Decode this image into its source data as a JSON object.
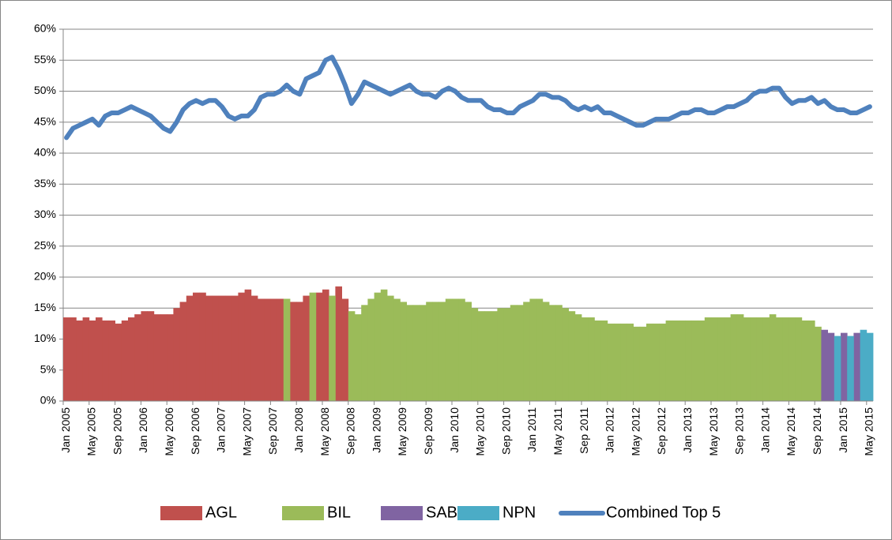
{
  "chart_data": {
    "type": "combo",
    "ylim": [
      0,
      60
    ],
    "yticks": [
      {
        "value": 0,
        "label": "0%"
      },
      {
        "value": 5,
        "label": "5%"
      },
      {
        "value": 10,
        "label": "10%"
      },
      {
        "value": 15,
        "label": "15%"
      },
      {
        "value": 20,
        "label": "20%"
      },
      {
        "value": 25,
        "label": "25%"
      },
      {
        "value": 30,
        "label": "30%"
      },
      {
        "value": 35,
        "label": "35%"
      },
      {
        "value": 40,
        "label": "40%"
      },
      {
        "value": 45,
        "label": "45%"
      },
      {
        "value": 50,
        "label": "50%"
      },
      {
        "value": 55,
        "label": "55%"
      },
      {
        "value": 60,
        "label": "60%"
      }
    ],
    "grid": true,
    "legend": "bottom",
    "categories": [
      "Jan 2005",
      null,
      null,
      null,
      "May 2005",
      null,
      null,
      null,
      "Sep 2005",
      null,
      null,
      null,
      "Jan 2006",
      null,
      null,
      null,
      "May 2006",
      null,
      null,
      null,
      "Sep 2006",
      null,
      null,
      null,
      "Jan 2007",
      null,
      null,
      null,
      "May 2007",
      null,
      null,
      null,
      "Sep 2007",
      null,
      null,
      null,
      "Jan 2008",
      null,
      null,
      null,
      "May 2008",
      null,
      null,
      null,
      "Sep 2008",
      null,
      null,
      null,
      "Jan 2009",
      null,
      null,
      null,
      "May 2009",
      null,
      null,
      null,
      "Sep 2009",
      null,
      null,
      null,
      "Jan 2010",
      null,
      null,
      null,
      "May 2010",
      null,
      null,
      null,
      "Sep 2010",
      null,
      null,
      null,
      "Jan 2011",
      null,
      null,
      null,
      "May 2011",
      null,
      null,
      null,
      "Sep 2011",
      null,
      null,
      null,
      "Jan 2012",
      null,
      null,
      null,
      "May 2012",
      null,
      null,
      null,
      "Sep 2012",
      null,
      null,
      null,
      "Jan 2013",
      null,
      null,
      null,
      "May 2013",
      null,
      null,
      null,
      "Sep 2013",
      null,
      null,
      null,
      "Jan 2014",
      null,
      null,
      null,
      "May 2014",
      null,
      null,
      null,
      "Sep 2014",
      null,
      null,
      null,
      "Jan 2015",
      null,
      null,
      null,
      "May 2015"
    ],
    "series": [
      {
        "name": "AGL",
        "type": "area",
        "color": "#c0504d",
        "values": [
          13.5,
          13.5,
          13,
          13.5,
          13,
          13.5,
          13,
          13,
          12.5,
          13,
          13.5,
          14,
          14.5,
          14.5,
          14,
          14,
          14,
          15,
          16,
          17,
          17.5,
          17.5,
          17,
          17,
          17,
          17,
          17,
          17.5,
          18,
          17,
          16.5,
          16.5,
          16.5,
          16.5,
          null,
          16,
          16,
          17,
          null,
          17.5,
          18,
          null,
          18.5,
          16.5,
          null,
          null,
          null,
          null,
          null,
          null,
          null,
          null,
          null,
          null,
          null,
          null,
          null,
          null,
          null,
          null,
          null,
          null,
          null,
          null,
          null,
          null,
          null,
          null,
          null,
          null,
          null,
          null,
          null,
          null,
          null,
          null,
          null,
          null,
          null,
          null,
          null,
          null,
          null,
          null,
          null,
          null,
          null,
          null,
          null,
          null,
          null,
          null,
          null,
          null,
          null,
          null,
          null,
          null,
          null,
          null,
          null,
          null,
          null,
          null,
          null,
          null,
          null,
          null,
          null,
          null,
          null,
          null,
          null,
          null,
          null,
          null,
          null,
          null,
          null,
          null,
          null,
          null,
          null,
          null,
          null
        ]
      },
      {
        "name": "BIL",
        "type": "area",
        "color": "#9bbb59",
        "values": [
          null,
          null,
          null,
          null,
          null,
          null,
          null,
          null,
          null,
          null,
          null,
          null,
          null,
          null,
          null,
          null,
          null,
          null,
          null,
          null,
          null,
          null,
          null,
          null,
          null,
          null,
          null,
          null,
          null,
          null,
          null,
          null,
          null,
          null,
          16.5,
          null,
          null,
          null,
          17.5,
          null,
          null,
          17,
          null,
          null,
          14.5,
          14,
          15.5,
          16.5,
          17.5,
          18,
          17,
          16.5,
          16,
          15.5,
          15.5,
          15.5,
          16,
          16,
          16,
          16.5,
          16.5,
          16.5,
          16,
          15,
          14.5,
          14.5,
          14.5,
          15,
          15,
          15.5,
          15.5,
          16,
          16.5,
          16.5,
          16,
          15.5,
          15.5,
          15,
          14.5,
          14,
          13.5,
          13.5,
          13,
          13,
          12.5,
          12.5,
          12.5,
          12.5,
          12,
          12,
          12.5,
          12.5,
          12.5,
          13,
          13,
          13,
          13,
          13,
          13,
          13.5,
          13.5,
          13.5,
          13.5,
          14,
          14,
          13.5,
          13.5,
          13.5,
          13.5,
          14,
          13.5,
          13.5,
          13.5,
          13.5,
          13,
          13,
          12,
          null,
          null,
          null,
          null,
          null,
          null,
          null,
          null
        ]
      },
      {
        "name": "SAB",
        "type": "area",
        "color": "#8064a2",
        "values": [
          null,
          null,
          null,
          null,
          null,
          null,
          null,
          null,
          null,
          null,
          null,
          null,
          null,
          null,
          null,
          null,
          null,
          null,
          null,
          null,
          null,
          null,
          null,
          null,
          null,
          null,
          null,
          null,
          null,
          null,
          null,
          null,
          null,
          null,
          null,
          null,
          null,
          null,
          null,
          null,
          null,
          null,
          null,
          null,
          null,
          null,
          null,
          null,
          null,
          null,
          null,
          null,
          null,
          null,
          null,
          null,
          null,
          null,
          null,
          null,
          null,
          null,
          null,
          null,
          null,
          null,
          null,
          null,
          null,
          null,
          null,
          null,
          null,
          null,
          null,
          null,
          null,
          null,
          null,
          null,
          null,
          null,
          null,
          null,
          null,
          null,
          null,
          null,
          null,
          null,
          null,
          null,
          null,
          null,
          null,
          null,
          null,
          null,
          null,
          null,
          null,
          null,
          null,
          null,
          null,
          null,
          null,
          null,
          null,
          null,
          null,
          null,
          null,
          null,
          null,
          null,
          null,
          11.5,
          11,
          null,
          11,
          null,
          11,
          null,
          null
        ]
      },
      {
        "name": "NPN",
        "type": "area",
        "color": "#4bacc6",
        "values": [
          null,
          null,
          null,
          null,
          null,
          null,
          null,
          null,
          null,
          null,
          null,
          null,
          null,
          null,
          null,
          null,
          null,
          null,
          null,
          null,
          null,
          null,
          null,
          null,
          null,
          null,
          null,
          null,
          null,
          null,
          null,
          null,
          null,
          null,
          null,
          null,
          null,
          null,
          null,
          null,
          null,
          null,
          null,
          null,
          null,
          null,
          null,
          null,
          null,
          null,
          null,
          null,
          null,
          null,
          null,
          null,
          null,
          null,
          null,
          null,
          null,
          null,
          null,
          null,
          null,
          null,
          null,
          null,
          null,
          null,
          null,
          null,
          null,
          null,
          null,
          null,
          null,
          null,
          null,
          null,
          null,
          null,
          null,
          null,
          null,
          null,
          null,
          null,
          null,
          null,
          null,
          null,
          null,
          null,
          null,
          null,
          null,
          null,
          null,
          null,
          null,
          null,
          null,
          null,
          null,
          null,
          null,
          null,
          null,
          null,
          null,
          null,
          null,
          null,
          null,
          null,
          null,
          null,
          null,
          10.5,
          null,
          10.5,
          null,
          11.5,
          11
        ]
      },
      {
        "name": "Combined Top 5",
        "type": "line",
        "color": "#4f81bd",
        "values": [
          42.5,
          44,
          44.5,
          45,
          45.5,
          44.5,
          46,
          46.5,
          46.5,
          47,
          47.5,
          47,
          46.5,
          46,
          45,
          44,
          43.5,
          45,
          47,
          48,
          48.5,
          48,
          48.5,
          48.5,
          47.5,
          46,
          45.5,
          46,
          46,
          47,
          49,
          49.5,
          49.5,
          50,
          51,
          50,
          49.5,
          52,
          52.5,
          53,
          55,
          55.5,
          53.5,
          51,
          48,
          49.5,
          51.5,
          51,
          50.5,
          50,
          49.5,
          50,
          50.5,
          51,
          50,
          49.5,
          49.5,
          49,
          50,
          50.5,
          50,
          49,
          48.5,
          48.5,
          48.5,
          47.5,
          47,
          47,
          46.5,
          46.5,
          47.5,
          48,
          48.5,
          49.5,
          49.5,
          49,
          49,
          48.5,
          47.5,
          47,
          47.5,
          47,
          47.5,
          46.5,
          46.5,
          46,
          45.5,
          45,
          44.5,
          44.5,
          45,
          45.5,
          45.5,
          45.5,
          46,
          46.5,
          46.5,
          47,
          47,
          46.5,
          46.5,
          47,
          47.5,
          47.5,
          48,
          48.5,
          49.5,
          50,
          50,
          50.5,
          50.5,
          49,
          48,
          48.5,
          48.5,
          49,
          48,
          48.5,
          47.5,
          47,
          47,
          46.5,
          46.5,
          47,
          47.5
        ]
      }
    ]
  }
}
